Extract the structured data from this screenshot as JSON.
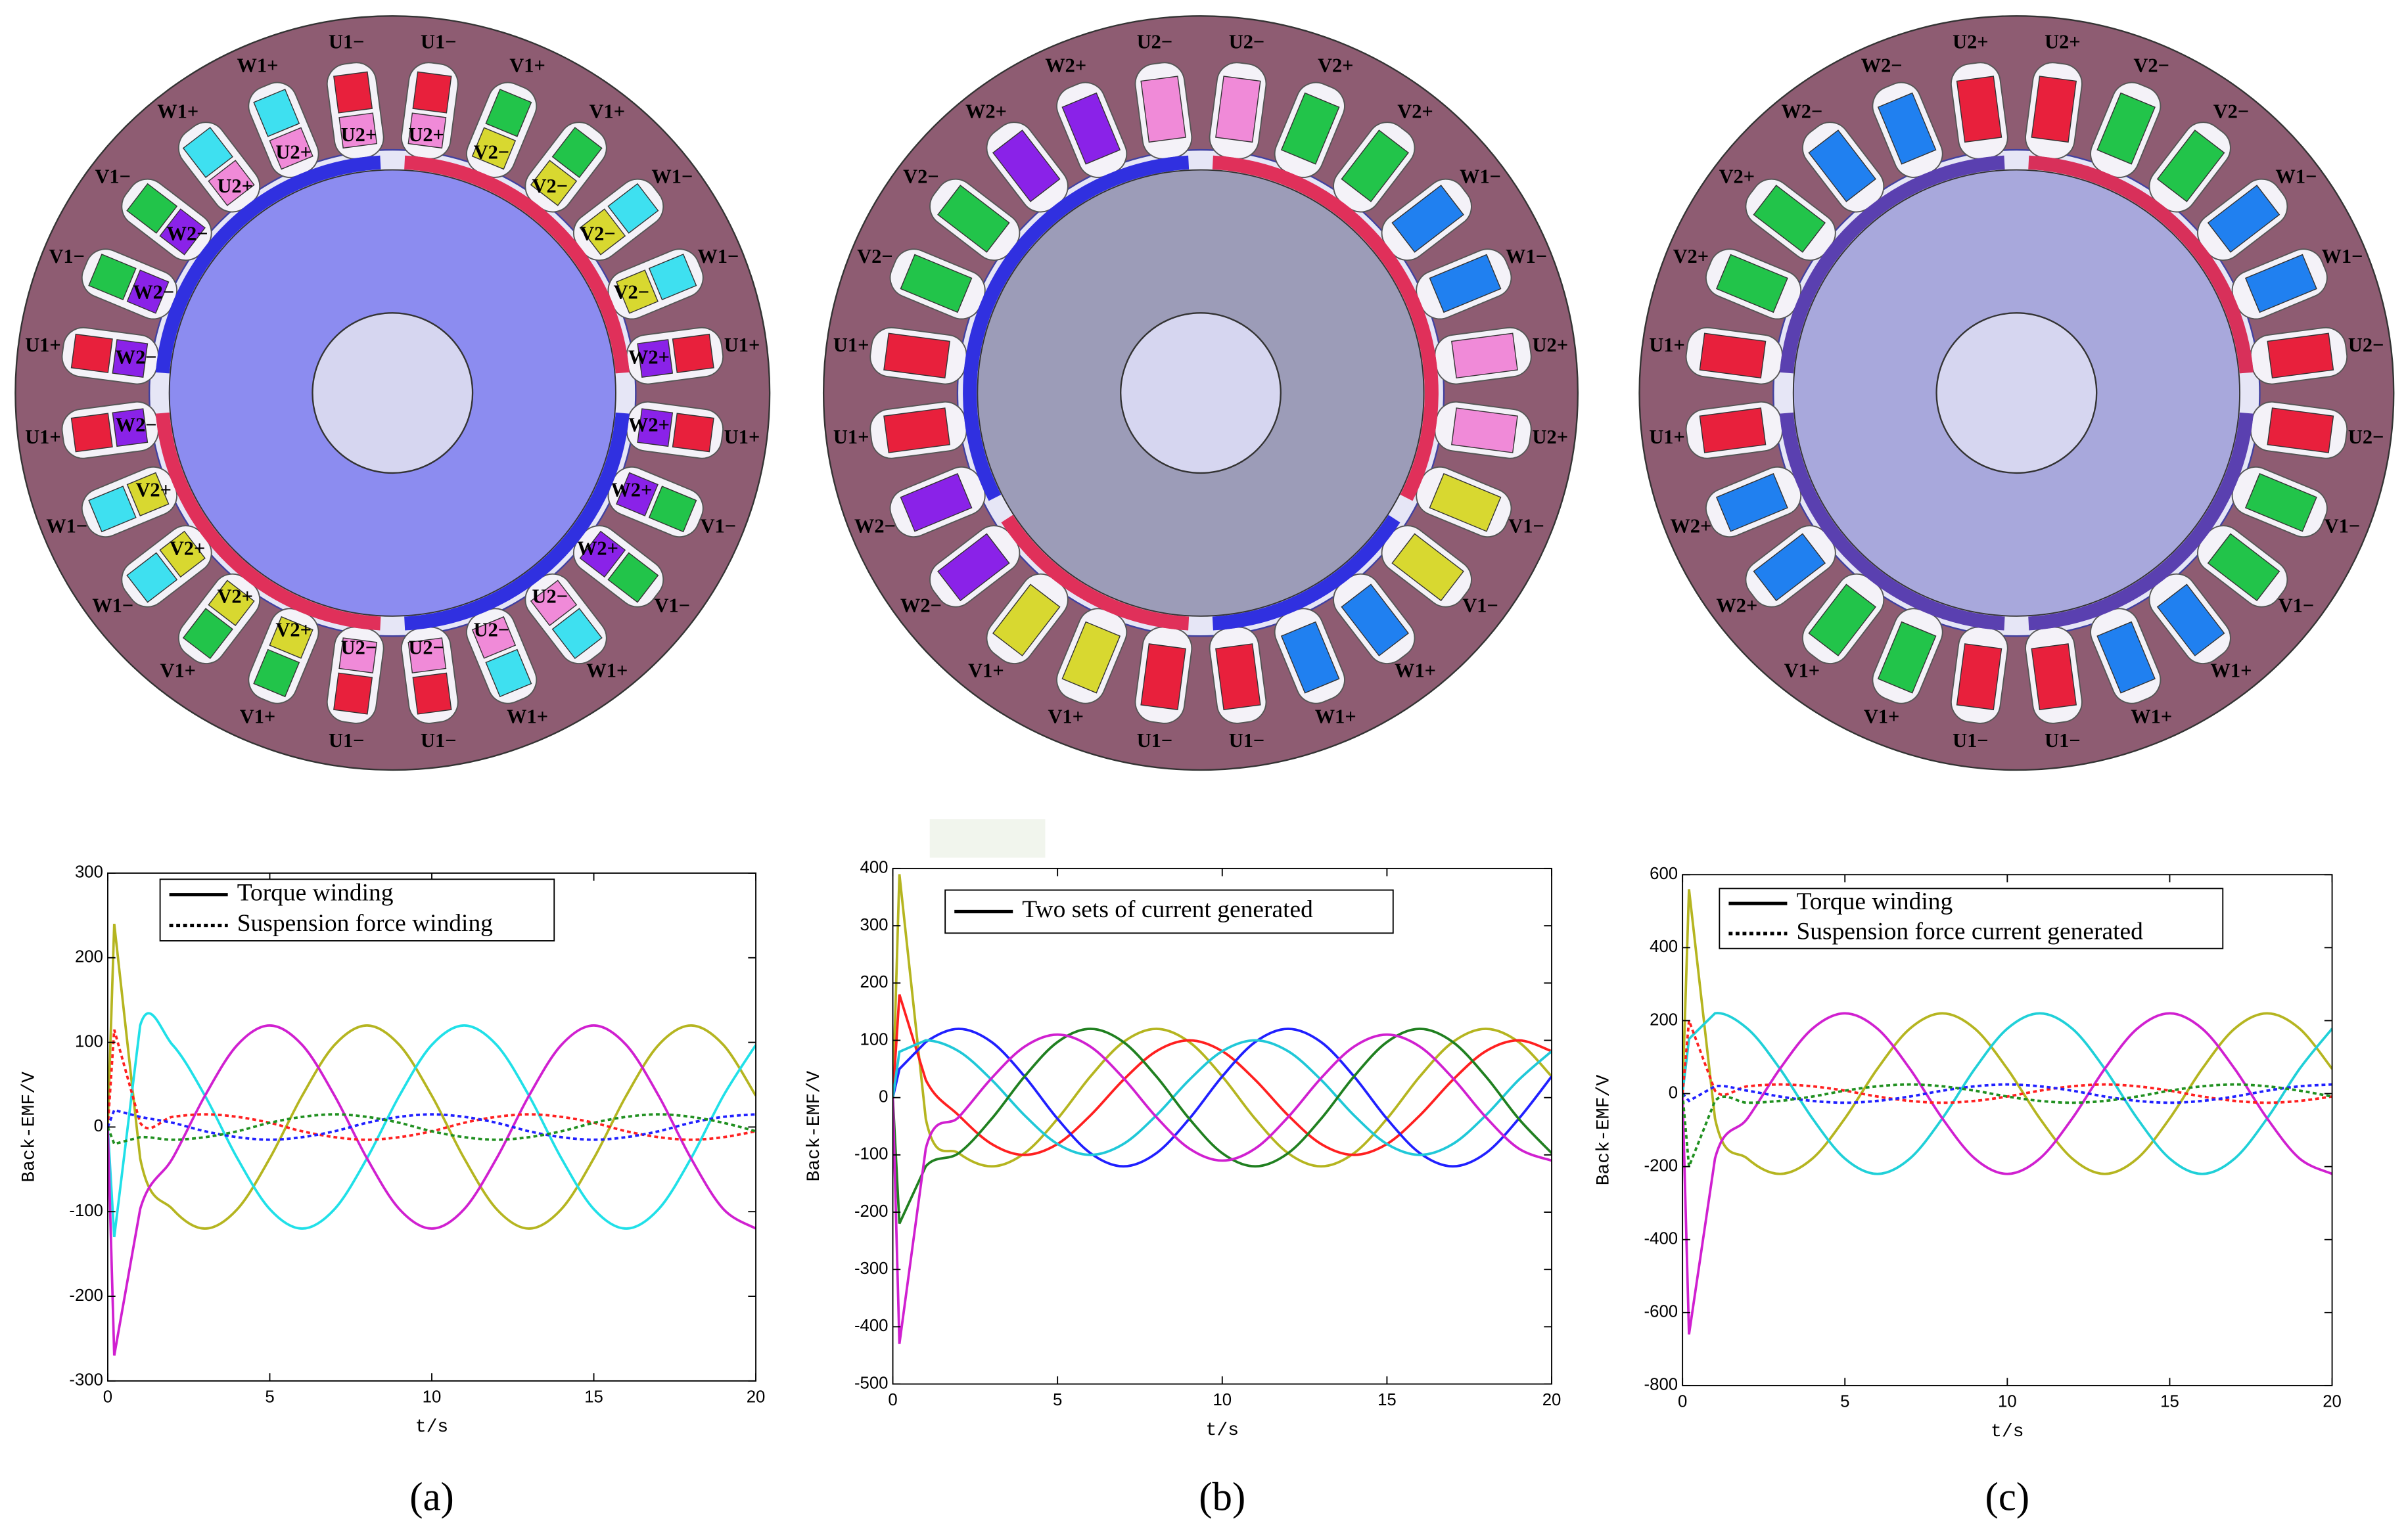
{
  "motors": [
    {
      "slot_labels": [
        "U1−",
        "V1+",
        "V1+",
        "W1−",
        "W1−",
        "U1+",
        "U1+",
        "V1−",
        "V1−",
        "W1+",
        "W1+",
        "U1−",
        "U1−",
        "V1+",
        "V1+",
        "W1−",
        "W1−",
        "U1+",
        "U1+",
        "V1−",
        "V1−",
        "W1+",
        "W1+",
        "U1−"
      ],
      "inner_labels": [
        "U2+",
        "V2−",
        "V2−",
        "V2−",
        "V2−",
        "W2+",
        "W2+",
        "W2+",
        "W2+",
        "U2−",
        "U2−",
        "U2−",
        "U2−",
        "V2+",
        "V2+",
        "V2+",
        "V2+",
        "W2−",
        "W2−",
        "W2−",
        "W2−",
        "U2+",
        "U2+",
        "U2+"
      ],
      "phase_colors": {
        "U1": "#e8203c",
        "V1": "#22c44a",
        "W1": "#3ee0f0",
        "U2": "#f08ad8",
        "V2": "#d8d830",
        "W2": "#8a22e8"
      }
    },
    {
      "slot_labels": [
        "U2−",
        "V2+",
        "V2+",
        "W1−",
        "W1−",
        "U2+",
        "U2+",
        "V1−",
        "V1−",
        "W1+",
        "W1+",
        "U1−",
        "U1−",
        "V1+",
        "V1+",
        "W2−",
        "W2−",
        "U1+",
        "U1+",
        "V2−",
        "V2−",
        "W2+",
        "W2+",
        "U2−"
      ],
      "phase_colors": {
        "U1": "#e8203c",
        "U2": "#f08ad8",
        "V1": "#d8d830",
        "V2": "#22c44a",
        "W1": "#2080f0",
        "W2": "#8a22e8"
      }
    },
    {
      "slot_labels": [
        "U2+",
        "V2−",
        "V2−",
        "W1−",
        "W1−",
        "U2−",
        "U2−",
        "V1−",
        "V1−",
        "W1+",
        "W1+",
        "U1−",
        "U1−",
        "V1+",
        "V1+",
        "W2+",
        "W2+",
        "U1+",
        "U1+",
        "V2+",
        "V2+",
        "W2−",
        "W2−",
        "U2+"
      ],
      "phase_colors": {
        "U1": "#e8203c",
        "U2": "#e8203c",
        "V1": "#22c44a",
        "V2": "#22c44a",
        "W1": "#2080f0",
        "W2": "#2080f0"
      }
    }
  ],
  "chart_data": [
    {
      "type": "line",
      "caption": "(a)",
      "xlabel": "t/s",
      "ylabel": "Back-EMF/V",
      "xlim": [
        0,
        20
      ],
      "xticks": [
        0,
        5,
        10,
        15,
        20
      ],
      "ylim": [
        -300,
        300
      ],
      "yticks": [
        -300,
        -200,
        -100,
        0,
        100,
        200,
        300
      ],
      "legend": [
        {
          "label": "Torque winding",
          "dash": "solid"
        },
        {
          "label": "Suspension force winding",
          "dash": "dotted"
        }
      ],
      "x": [
        0,
        0.2,
        1,
        2,
        3,
        4,
        5,
        6,
        7,
        8,
        9,
        10,
        11,
        12,
        13,
        14,
        15,
        16,
        17,
        18,
        19,
        20
      ],
      "series": [
        {
          "color": "#b5b520",
          "dash": "solid",
          "values": [
            0,
            240,
            -37,
            -97,
            -120,
            -97,
            -37,
            37,
            97,
            120,
            97,
            37,
            -37,
            -97,
            -120,
            -97,
            -37,
            37,
            97,
            120,
            97,
            37
          ]
        },
        {
          "color": "#20e0e8",
          "dash": "solid",
          "values": [
            0,
            -130,
            120,
            97,
            37,
            -37,
            -97,
            -120,
            -97,
            -37,
            37,
            97,
            120,
            97,
            37,
            -37,
            -97,
            -120,
            -97,
            -37,
            37,
            97
          ]
        },
        {
          "color": "#d020d0",
          "dash": "solid",
          "values": [
            0,
            -270,
            -97,
            -37,
            37,
            97,
            120,
            97,
            37,
            -37,
            -97,
            -120,
            -97,
            -37,
            37,
            97,
            120,
            97,
            37,
            -37,
            -97,
            -120
          ]
        },
        {
          "color": "#ff2020",
          "dash": "dotted",
          "values": [
            0,
            115,
            5,
            12,
            15,
            12,
            5,
            -5,
            -12,
            -15,
            -12,
            -5,
            5,
            12,
            15,
            12,
            5,
            -5,
            -12,
            -15,
            -12,
            -5
          ]
        },
        {
          "color": "#2020ff",
          "dash": "dotted",
          "values": [
            0,
            20,
            12,
            5,
            -5,
            -12,
            -15,
            -12,
            -5,
            5,
            12,
            15,
            12,
            5,
            -5,
            -12,
            -15,
            -12,
            -5,
            5,
            12,
            15
          ]
        },
        {
          "color": "#209020",
          "dash": "dotted",
          "values": [
            0,
            -20,
            -12,
            -15,
            -12,
            -5,
            5,
            12,
            15,
            12,
            5,
            -5,
            -12,
            -15,
            -12,
            -5,
            5,
            12,
            15,
            12,
            5,
            -5
          ]
        }
      ]
    },
    {
      "type": "line",
      "caption": "(b)",
      "xlabel": "t/s",
      "ylabel": "Back-EMF/V",
      "xlim": [
        0,
        20
      ],
      "xticks": [
        0,
        5,
        10,
        15,
        20
      ],
      "ylim": [
        -500,
        400
      ],
      "yticks": [
        -500,
        -400,
        -300,
        -200,
        -100,
        0,
        100,
        200,
        300,
        400
      ],
      "legend": [
        {
          "label": "Two sets of current generated",
          "dash": "solid"
        }
      ],
      "x": [
        0,
        0.2,
        1,
        2,
        3,
        4,
        5,
        6,
        7,
        8,
        9,
        10,
        11,
        12,
        13,
        14,
        15,
        16,
        17,
        18,
        19,
        20
      ],
      "series": [
        {
          "color": "#b5b520",
          "dash": "solid",
          "values": [
            0,
            390,
            -37,
            -97,
            -120,
            -97,
            -37,
            37,
            97,
            120,
            97,
            37,
            -37,
            -97,
            -120,
            -97,
            -37,
            37,
            97,
            120,
            97,
            37
          ]
        },
        {
          "color": "#ff2020",
          "dash": "solid",
          "values": [
            0,
            180,
            31,
            -31,
            -81,
            -100,
            -81,
            -31,
            31,
            81,
            100,
            81,
            31,
            -31,
            -81,
            -100,
            -81,
            -31,
            31,
            81,
            100,
            81
          ]
        },
        {
          "color": "#2020ff",
          "dash": "solid",
          "values": [
            0,
            50,
            97,
            120,
            97,
            37,
            -37,
            -97,
            -120,
            -97,
            -37,
            37,
            97,
            120,
            97,
            37,
            -37,
            -97,
            -120,
            -97,
            -37,
            37
          ]
        },
        {
          "color": "#20c8d8",
          "dash": "solid",
          "values": [
            0,
            80,
            100,
            81,
            31,
            -31,
            -81,
            -100,
            -81,
            -31,
            31,
            81,
            100,
            81,
            31,
            -31,
            -81,
            -100,
            -81,
            -31,
            31,
            81
          ]
        },
        {
          "color": "#208020",
          "dash": "solid",
          "values": [
            0,
            -220,
            -120,
            -97,
            -37,
            37,
            97,
            120,
            97,
            37,
            -37,
            -97,
            -120,
            -97,
            -37,
            37,
            97,
            120,
            97,
            37,
            -37,
            -97
          ]
        },
        {
          "color": "#d020d0",
          "dash": "solid",
          "values": [
            0,
            -430,
            -89,
            -34,
            34,
            89,
            110,
            89,
            34,
            -34,
            -89,
            -110,
            -89,
            -34,
            34,
            89,
            110,
            89,
            34,
            -34,
            -89,
            -110
          ]
        }
      ]
    },
    {
      "type": "line",
      "caption": "(c)",
      "xlabel": "t/s",
      "ylabel": "Back-EMF/V",
      "xlim": [
        0,
        20
      ],
      "xticks": [
        0,
        5,
        10,
        15,
        20
      ],
      "ylim": [
        -800,
        600
      ],
      "yticks": [
        -800,
        -600,
        -400,
        -200,
        0,
        200,
        400,
        600
      ],
      "legend": [
        {
          "label": "Torque winding",
          "dash": "solid"
        },
        {
          "label": "Suspension force current generated",
          "dash": "dotted"
        }
      ],
      "x": [
        0,
        0.2,
        1,
        2,
        3,
        4,
        5,
        6,
        7,
        8,
        9,
        10,
        11,
        12,
        13,
        14,
        15,
        16,
        17,
        18,
        19,
        20
      ],
      "series": [
        {
          "color": "#b5b520",
          "dash": "solid",
          "values": [
            0,
            560,
            -68,
            -178,
            -220,
            -178,
            -68,
            68,
            178,
            220,
            178,
            68,
            -68,
            -178,
            -220,
            -178,
            -68,
            68,
            178,
            220,
            178,
            68
          ]
        },
        {
          "color": "#20d0d8",
          "dash": "solid",
          "values": [
            0,
            150,
            220,
            178,
            68,
            -68,
            -178,
            -220,
            -178,
            -68,
            68,
            178,
            220,
            178,
            68,
            -68,
            -178,
            -220,
            -178,
            -68,
            68,
            178
          ]
        },
        {
          "color": "#d020d0",
          "dash": "solid",
          "values": [
            0,
            -660,
            -178,
            -68,
            68,
            178,
            220,
            178,
            68,
            -68,
            -178,
            -220,
            -178,
            -68,
            68,
            178,
            220,
            178,
            68,
            -68,
            -178,
            -220
          ]
        },
        {
          "color": "#ff2020",
          "dash": "dotted",
          "values": [
            0,
            200,
            8,
            20,
            25,
            20,
            8,
            -8,
            -20,
            -25,
            -20,
            -8,
            8,
            20,
            25,
            20,
            8,
            -8,
            -20,
            -25,
            -20,
            -8
          ]
        },
        {
          "color": "#2020ff",
          "dash": "dotted",
          "values": [
            0,
            -20,
            20,
            8,
            -8,
            -20,
            -25,
            -20,
            -8,
            8,
            20,
            25,
            20,
            8,
            -8,
            -20,
            -25,
            -20,
            -8,
            8,
            20,
            25
          ]
        },
        {
          "color": "#209020",
          "dash": "dotted",
          "values": [
            0,
            -200,
            -20,
            -25,
            -20,
            -8,
            8,
            20,
            25,
            20,
            8,
            -8,
            -20,
            -25,
            -20,
            -8,
            8,
            20,
            25,
            20,
            8,
            -8
          ]
        }
      ]
    }
  ]
}
